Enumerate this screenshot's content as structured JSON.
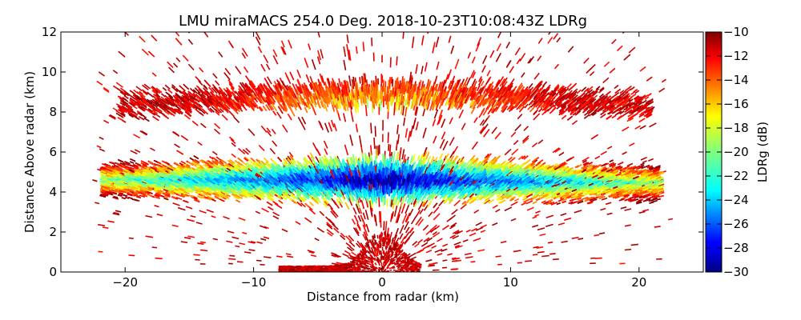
{
  "chart_data": {
    "type": "heatmap",
    "title": "LMU miraMACS 254.0 Deg. 2018-10-23T10:08:43Z  LDRg",
    "xlabel": "Distance from radar (km)",
    "ylabel": "Distance Above radar  (km)",
    "xlim": [
      -25,
      25
    ],
    "ylim": [
      0,
      12
    ],
    "xticks": [
      -20,
      -10,
      0,
      10,
      20
    ],
    "xtick_labels": [
      "−20",
      "−10",
      "0",
      "10",
      "20"
    ],
    "yticks": [
      0,
      2,
      4,
      6,
      8,
      10,
      12
    ],
    "ytick_labels": [
      "0",
      "2",
      "4",
      "6",
      "8",
      "10",
      "12"
    ],
    "colorbar": {
      "label": "LDRg (dB)",
      "range": [
        -30,
        -10
      ],
      "ticks": [
        -10,
        -12,
        -14,
        -16,
        -18,
        -20,
        -22,
        -24,
        -26,
        -28,
        -30
      ],
      "tick_labels": [
        "−10",
        "−12",
        "−14",
        "−16",
        "−18",
        "−20",
        "−22",
        "−24",
        "−26",
        "−28",
        "−30"
      ],
      "colormap": "jet"
    },
    "grid": false,
    "scan_type": "RHI",
    "elevation_azimuth_deg": 254.0,
    "layers": [
      {
        "name": "melting-layer",
        "height_km": [
          3.6,
          6.0
        ],
        "x_extent_km": [
          -22,
          22
        ],
        "ldr_db_range": [
          -30,
          -12
        ]
      },
      {
        "name": "upper-cloud",
        "height_km": [
          7.4,
          10.4
        ],
        "x_extent_km": [
          -20,
          21
        ],
        "ldr_db_range": [
          -18,
          -10
        ]
      },
      {
        "name": "near-surface-clutter",
        "height_km": [
          0,
          1.6
        ],
        "x_extent_km": [
          -8,
          3
        ],
        "ldr_db_range": [
          -12,
          -10
        ]
      }
    ]
  }
}
